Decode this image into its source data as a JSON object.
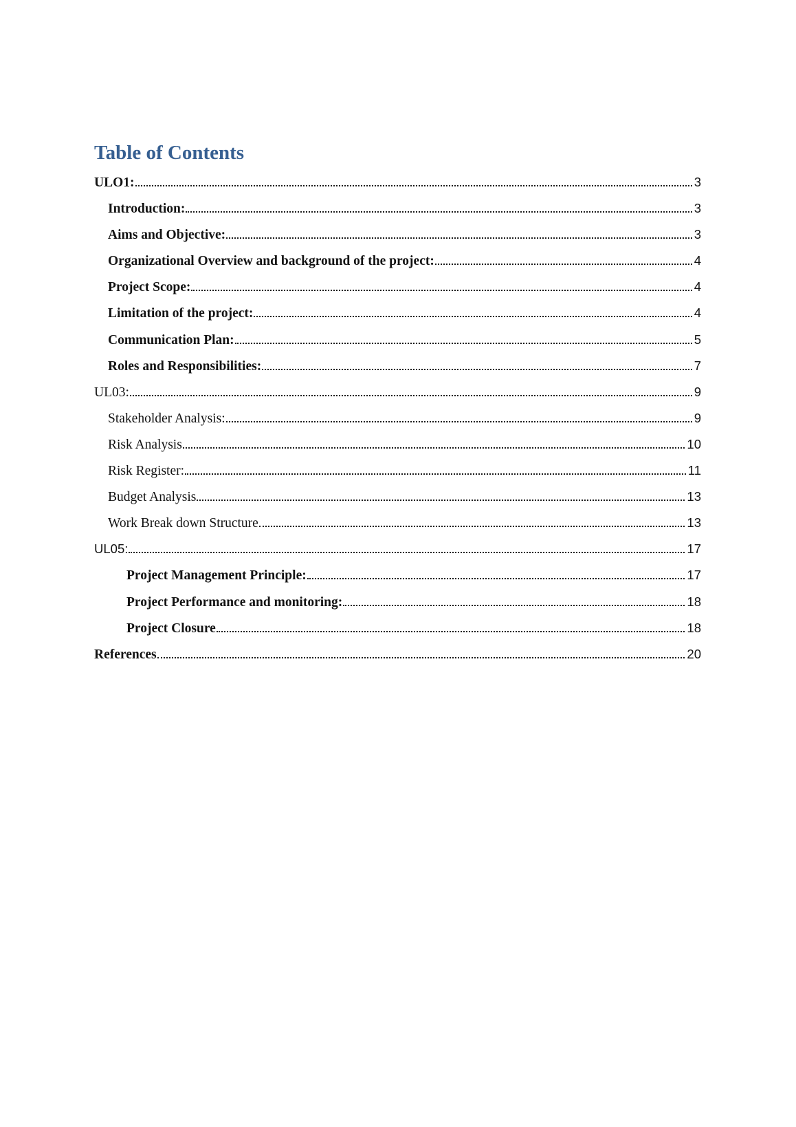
{
  "page": {
    "title": "Table of Contents",
    "title_color": "#365F91",
    "text_color": "#131313"
  },
  "toc": {
    "entries": [
      {
        "label": "ULO1:",
        "page": "3",
        "level": 0,
        "style": "bold-serif"
      },
      {
        "label": "Introduction:",
        "page": "3",
        "level": 1,
        "style": "bold-serif"
      },
      {
        "label": "Aims and Objective:",
        "page": "3",
        "level": 1,
        "style": "bold-serif"
      },
      {
        "label": "Organizational Overview and background of the project:",
        "page": "4",
        "level": 1,
        "style": "bold-serif"
      },
      {
        "label": "Project Scope:",
        "page": "4",
        "level": 1,
        "style": "bold-serif"
      },
      {
        "label": "Limitation of the project:",
        "page": "4",
        "level": 1,
        "style": "bold-serif"
      },
      {
        "label": "Communication Plan:",
        "page": "5",
        "level": 1,
        "style": "bold-serif"
      },
      {
        "label": "Roles and Responsibilities:",
        "page": "7",
        "level": 1,
        "style": "bold-serif"
      },
      {
        "label": "UL03:",
        "page": "9",
        "level": 0,
        "style": "serif"
      },
      {
        "label": "Stakeholder Analysis:",
        "page": "9",
        "level": 1,
        "style": "serif"
      },
      {
        "label": "Risk Analysis",
        "page": "10",
        "level": 1,
        "style": "serif"
      },
      {
        "label": "Risk Register:",
        "page": "11",
        "level": 1,
        "style": "serif"
      },
      {
        "label": "Budget Analysis",
        "page": "13",
        "level": 1,
        "style": "serif"
      },
      {
        "label": "Work Break down Structure",
        "page": "13",
        "level": 1,
        "style": "serif"
      },
      {
        "label": "UL05:",
        "page": "17",
        "level": 0,
        "style": "sans"
      },
      {
        "label": "Project Management Principle:",
        "page": "17",
        "level": 2,
        "style": "bold-serif"
      },
      {
        "label": "Project Performance and monitoring:",
        "page": "18",
        "level": 2,
        "style": "bold-serif"
      },
      {
        "label": "Project Closure",
        "page": "18",
        "level": 2,
        "style": "bold-serif"
      },
      {
        "label": "References",
        "page": "20",
        "level": 0,
        "style": "bold-serif"
      }
    ]
  }
}
